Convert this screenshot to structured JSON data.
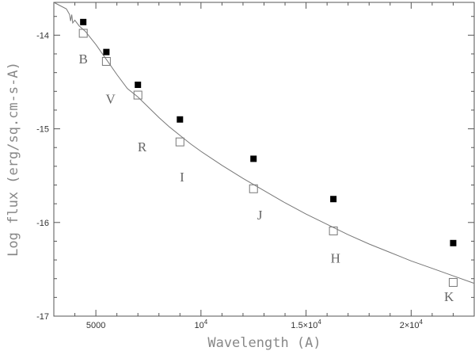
{
  "chart_data": {
    "type": "scatter",
    "xlabel": "Wavelength (A)",
    "ylabel": "Log flux (erg/sq.cm-s-A)",
    "xlim": [
      3000,
      23000
    ],
    "ylim": [
      -17,
      -13.65
    ],
    "grid": false,
    "x_ticks": [
      {
        "value": 5000,
        "label": "5000",
        "sup": ""
      },
      {
        "value": 10000,
        "label": "10",
        "sup": "4"
      },
      {
        "value": 15000,
        "label": "1.5×10",
        "sup": "4"
      },
      {
        "value": 20000,
        "label": "2×10",
        "sup": "4"
      }
    ],
    "y_ticks": [
      {
        "value": -14,
        "label": "-14"
      },
      {
        "value": -15,
        "label": "-15"
      },
      {
        "value": -16,
        "label": "-16"
      },
      {
        "value": -17,
        "label": "-17"
      }
    ],
    "observed": {
      "marker": "filled-square",
      "points": [
        {
          "x": 4400,
          "y": -13.86
        },
        {
          "x": 5500,
          "y": -14.18
        },
        {
          "x": 7000,
          "y": -14.53
        },
        {
          "x": 9000,
          "y": -14.9
        },
        {
          "x": 12500,
          "y": -15.32
        },
        {
          "x": 16300,
          "y": -15.75
        },
        {
          "x": 22000,
          "y": -16.22
        }
      ]
    },
    "model_points": {
      "marker": "open-square",
      "points": [
        {
          "x": 4400,
          "y": -13.98
        },
        {
          "x": 5500,
          "y": -14.28
        },
        {
          "x": 7000,
          "y": -14.64
        },
        {
          "x": 9000,
          "y": -15.14
        },
        {
          "x": 12500,
          "y": -15.64
        },
        {
          "x": 16300,
          "y": -16.09
        },
        {
          "x": 22000,
          "y": -16.64
        }
      ]
    },
    "band_labels": [
      {
        "text": "B",
        "x": 4400,
        "y": -14.3
      },
      {
        "text": "V",
        "x": 5700,
        "y": -14.73
      },
      {
        "text": "R",
        "x": 7200,
        "y": -15.24
      },
      {
        "text": "I",
        "x": 9100,
        "y": -15.56
      },
      {
        "text": "J",
        "x": 12800,
        "y": -15.97
      },
      {
        "text": "H",
        "x": 16400,
        "y": -16.43
      },
      {
        "text": "K",
        "x": 21800,
        "y": -16.84
      }
    ],
    "model_curve": {
      "x": [
        3000,
        3600,
        3750,
        3800,
        3850,
        3900,
        4000,
        4200,
        4500,
        5000,
        5500,
        6000,
        6500,
        7000,
        7500,
        8000,
        8500,
        9000,
        9500,
        10000,
        11000,
        12000,
        13000,
        14000,
        15000,
        16000,
        17000,
        18000,
        19000,
        20000,
        21000,
        22000,
        23000
      ],
      "y": [
        -13.3,
        -13.72,
        -13.78,
        -13.85,
        -13.78,
        -13.87,
        -13.84,
        -13.9,
        -13.96,
        -14.1,
        -14.26,
        -14.42,
        -14.57,
        -14.66,
        -14.77,
        -14.88,
        -14.98,
        -15.07,
        -15.16,
        -15.24,
        -15.39,
        -15.53,
        -15.66,
        -15.79,
        -15.91,
        -16.02,
        -16.13,
        -16.23,
        -16.32,
        -16.41,
        -16.49,
        -16.57,
        -16.65
      ]
    }
  }
}
